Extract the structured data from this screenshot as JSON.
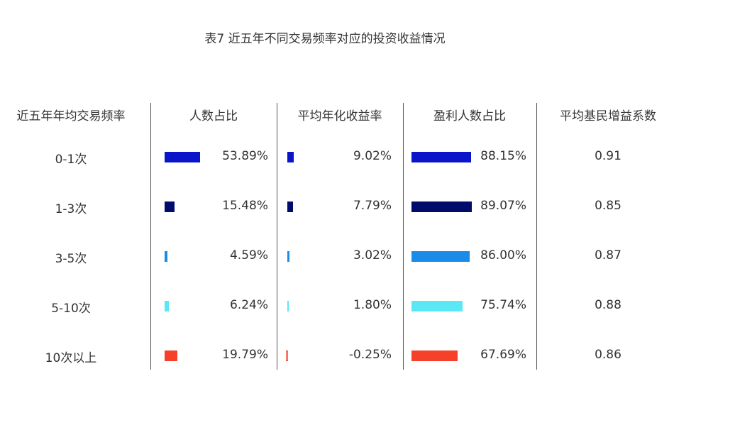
{
  "title": "表7 近五年不同交易频率对应的投资收益情况",
  "chart_data": {
    "type": "table",
    "title": "表7 近五年不同交易频率对应的投资收益情况",
    "columns": [
      "近五年年均交易频率",
      "人数占比",
      "平均年化收益率",
      "盈利人数占比",
      "平均基民增益系数"
    ],
    "rows": [
      {
        "label": "0-1次",
        "share": 53.89,
        "share_label": "53.89%",
        "return": 9.02,
        "return_label": "9.02%",
        "profit": 88.15,
        "profit_label": "88.15%",
        "coef": "0.91",
        "color": "#0a14c8"
      },
      {
        "label": "1-3次",
        "share": 15.48,
        "share_label": "15.48%",
        "return": 7.79,
        "return_label": "7.79%",
        "profit": 89.07,
        "profit_label": "89.07%",
        "coef": "0.85",
        "color": "#000b6b"
      },
      {
        "label": "3-5次",
        "share": 4.59,
        "share_label": "4.59%",
        "return": 3.02,
        "return_label": "3.02%",
        "profit": 86.0,
        "profit_label": "86.00%",
        "coef": "0.87",
        "color": "#1a8ce8"
      },
      {
        "label": "5-10次",
        "share": 6.24,
        "share_label": "6.24%",
        "return": 1.8,
        "return_label": "1.80%",
        "profit": 75.74,
        "profit_label": "75.74%",
        "coef": "0.88",
        "color": "#5ae8f5"
      },
      {
        "label": "10次以上",
        "share": 19.79,
        "share_label": "19.79%",
        "return": -0.25,
        "return_label": "-0.25%",
        "profit": 67.69,
        "profit_label": "67.69%",
        "coef": "0.86",
        "color": "#f5402a"
      }
    ]
  }
}
